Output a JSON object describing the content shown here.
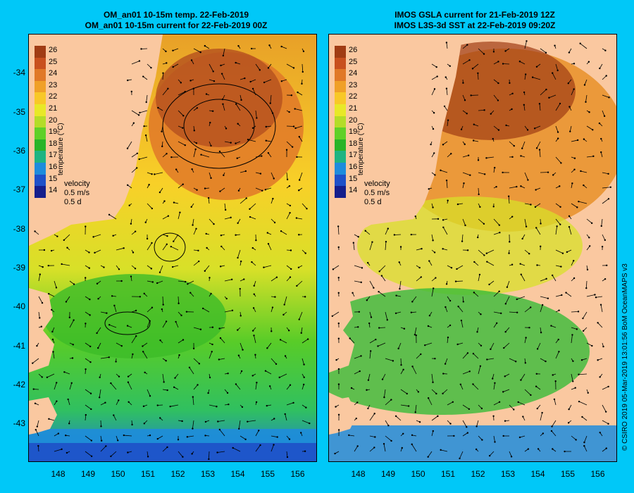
{
  "left_panel": {
    "title_line1": "OM_an01 10-15m temp. 22-Feb-2019",
    "title_line2": "OM_an01 10-15m current for 22-Feb-2019 00Z"
  },
  "right_panel": {
    "title_line1": "IMOS GSLA current for 21-Feb-2019 12Z",
    "title_line2": "IMOS L3S-3d SST at 22-Feb-2019 09:20Z"
  },
  "colorbar": {
    "title": "temperature (°C)",
    "ticks": [
      "26",
      "25",
      "24",
      "23",
      "22",
      "21",
      "20",
      "19",
      "18",
      "17",
      "16",
      "15",
      "14"
    ],
    "colors": [
      "#a03c14",
      "#c8501e",
      "#e07828",
      "#f0a028",
      "#f8c828",
      "#e8e828",
      "#b4dc28",
      "#60d028",
      "#28b428",
      "#1eb482",
      "#1e8cdc",
      "#1e50c8",
      "#141e8c"
    ]
  },
  "velocity_legend": {
    "title": "velocity",
    "speed": "0.5 m/s",
    "duration": "0.5 d"
  },
  "axes": {
    "lat_labels": [
      "-34",
      "-35",
      "-36",
      "-37",
      "-38",
      "-39",
      "-40",
      "-41",
      "-42",
      "-43"
    ],
    "lon_labels": [
      "148",
      "149",
      "150",
      "151",
      "152",
      "153",
      "154",
      "155",
      "156"
    ],
    "lon_range": [
      147.0,
      156.6
    ],
    "lat_range": [
      -43.95,
      -33.0
    ]
  },
  "credit": "© CSIRO 2019  05-Mar-2019 13:01:56 BoM OceanMAPS v3",
  "colors": {
    "background": "#00c8f8",
    "land": "#fac8a0"
  }
}
